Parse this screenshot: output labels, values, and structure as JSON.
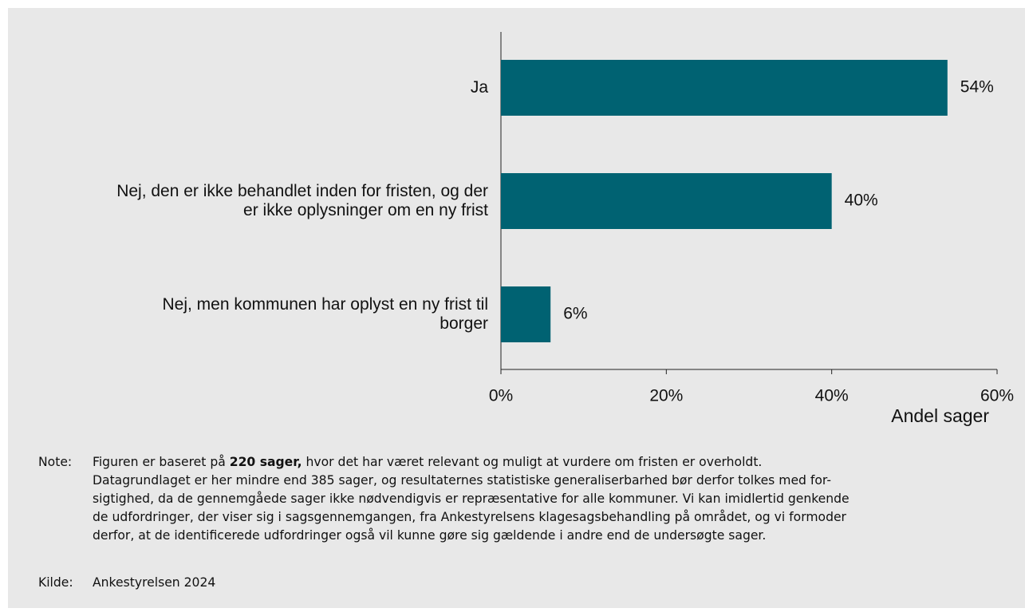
{
  "chart_data": {
    "type": "hbar",
    "categories": [
      "Ja",
      "Nej, den er ikke behandlet inden for fristen, og der\ner ikke oplysninger om en ny frist",
      "Nej, men kommunen har oplyst en ny frist til\nborger"
    ],
    "values": [
      54,
      40,
      6
    ],
    "value_labels": [
      "54%",
      "40%",
      "6%"
    ],
    "color": "#006272",
    "xlim": [
      0,
      60
    ],
    "xticks": [
      {
        "value": 0,
        "label": "0%"
      },
      {
        "value": 20,
        "label": "20%"
      },
      {
        "value": 40,
        "label": "40%"
      },
      {
        "value": 60,
        "label": "60%"
      }
    ],
    "xlabel": "Andel sager"
  },
  "note": {
    "label": "Note:",
    "lines": [
      [
        "Figuren er baseret på ",
        "220 sager,",
        " hvor det har været relevant og muligt at vurdere om fristen er overholdt."
      ],
      [
        "Datagrundlaget er her mindre end 385 sager, og resultaternes statistiske generaliserbarhed bør derfor tolkes med for-"
      ],
      [
        "sigtighed, da de gennemgåede sager ikke nødvendigvis er repræsentative for alle kommuner. Vi kan imidlertid genkende"
      ],
      [
        "de udfordringer, der viser sig i sagsgennemgangen, fra Ankestyrelsens klagesagsbehandling på området, og vi formoder"
      ],
      [
        "derfor, at de identificerede udfordringer også vil kunne gøre sig gældende i andre end de undersøgte sager."
      ]
    ]
  },
  "source": {
    "label": "Kilde:",
    "text": "Ankestyrelsen 2024"
  }
}
